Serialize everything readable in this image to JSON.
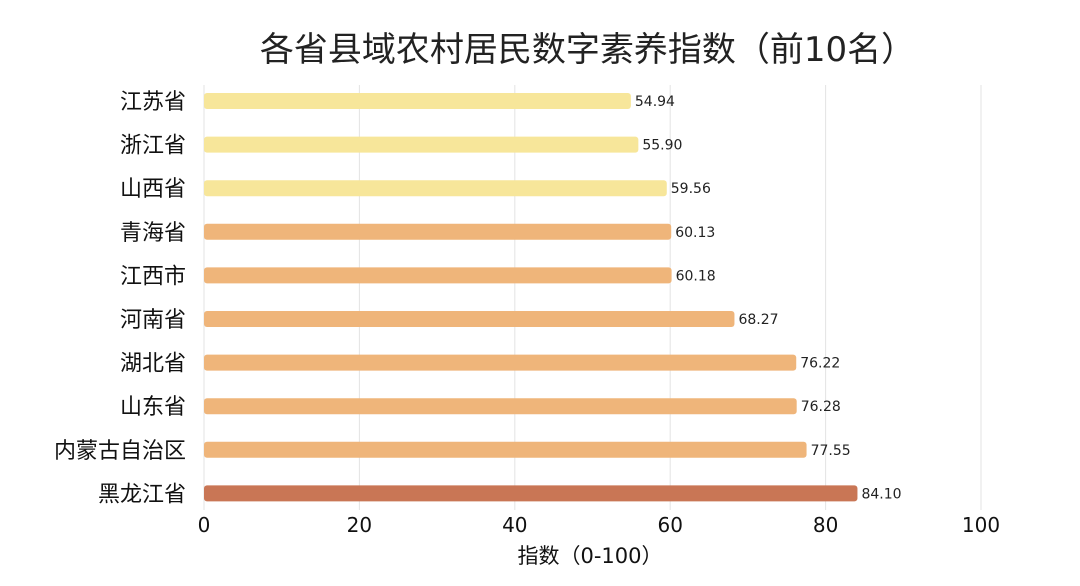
{
  "chart_data": {
    "type": "bar",
    "orientation": "horizontal",
    "title": "各省县域农村居民数字素养指数（前10名）",
    "xlabel": "指数（0-100）",
    "ylabel": "",
    "xlim": [
      0,
      100
    ],
    "xticks": [
      "0",
      "20",
      "40",
      "60",
      "80",
      "100"
    ],
    "grid": true,
    "categories": [
      "江苏省",
      "浙江省",
      "山西省",
      "青海省",
      "江西市",
      "河南省",
      "湖北省",
      "山东省",
      "内蒙古自治区",
      "黑龙江省"
    ],
    "values": [
      54.94,
      55.9,
      59.56,
      60.13,
      60.18,
      68.27,
      76.22,
      76.28,
      77.55,
      84.1
    ],
    "value_labels": [
      "54.94",
      "55.90",
      "59.56",
      "60.13",
      "60.18",
      "68.27",
      "76.22",
      "76.28",
      "77.55",
      "84.10"
    ],
    "colors": [
      "#f7e69a",
      "#f7e69a",
      "#f7e69a",
      "#efb57a",
      "#efb57a",
      "#efb57a",
      "#efb57a",
      "#efb57a",
      "#efb57a",
      "#c97655"
    ]
  }
}
